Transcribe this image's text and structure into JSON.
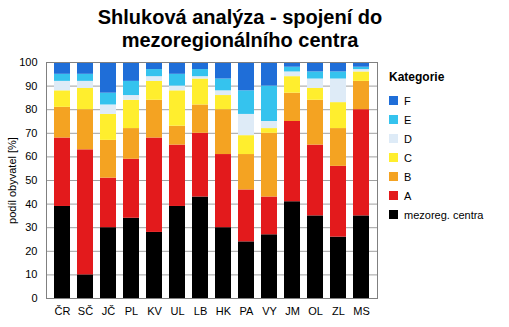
{
  "chart_data": {
    "type": "bar",
    "title": "Shluková analýza - spojení do mezoregionálního centra",
    "y_label": "podíl obyvatel [%]",
    "categories": [
      "ČR",
      "SČ",
      "JČ",
      "PL",
      "KV",
      "UL",
      "LB",
      "HK",
      "PA",
      "VY",
      "JM",
      "OL",
      "ZL",
      "MS"
    ],
    "series": [
      {
        "name": "mezoreg. centra",
        "color": "#000000",
        "values": [
          39,
          10,
          30,
          34,
          28,
          39,
          43,
          30,
          24,
          27,
          41,
          35,
          26,
          35
        ]
      },
      {
        "name": "A",
        "color": "#e31a1c",
        "values": [
          29,
          53,
          21,
          25,
          40,
          26,
          27,
          31,
          22,
          16,
          34,
          30,
          30,
          45
        ]
      },
      {
        "name": "B",
        "color": "#f4a322",
        "values": [
          13,
          17,
          16,
          13,
          16,
          8,
          12,
          19,
          15,
          27,
          12,
          19,
          16,
          12
        ]
      },
      {
        "name": "C",
        "color": "#ffee2e",
        "values": [
          7,
          9,
          11,
          12,
          8,
          15,
          11,
          6,
          8,
          2,
          7,
          5,
          11,
          4
        ]
      },
      {
        "name": "D",
        "color": "#deebf7",
        "values": [
          4,
          3,
          4,
          2,
          2,
          2,
          1,
          2,
          9,
          3,
          2,
          4,
          10,
          1
        ]
      },
      {
        "name": "E",
        "color": "#35c3ee",
        "values": [
          3,
          3,
          5,
          6,
          3,
          5,
          3,
          5,
          10,
          15,
          2,
          3,
          3,
          1
        ]
      },
      {
        "name": "F",
        "color": "#1f6ed8",
        "values": [
          5,
          5,
          13,
          8,
          3,
          5,
          3,
          7,
          12,
          10,
          2,
          4,
          4,
          2
        ]
      }
    ],
    "ylim": [
      0,
      100
    ],
    "yticks": [
      0,
      10,
      20,
      30,
      40,
      50,
      60,
      70,
      80,
      90,
      100
    ],
    "grid": true,
    "stacked": true,
    "legend": "right",
    "legend_title": "Kategorie"
  }
}
